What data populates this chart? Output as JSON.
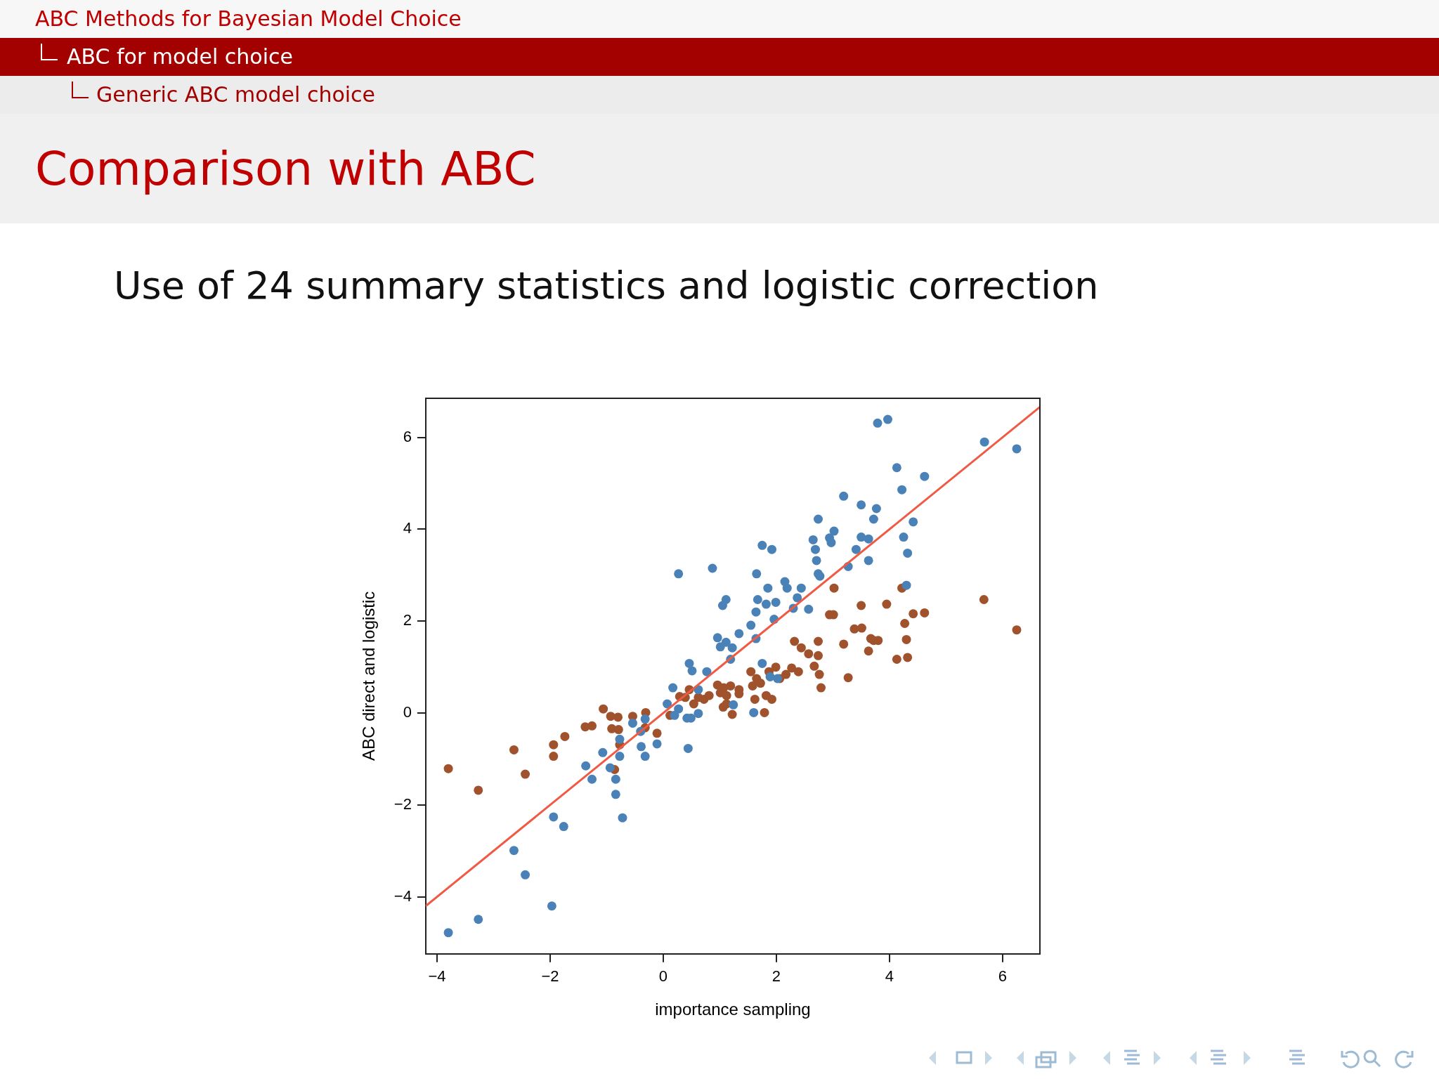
{
  "chart_data": {
    "type": "scatter",
    "title": "Comparison with ABC",
    "subtitle": "Use of 24 summary statistics and logistic correction",
    "annotations": [
      "ABC Methods for Bayesian Model Choice",
      "ABC for model choice",
      "Generic ABC model choice"
    ],
    "xlabel": "importance sampling",
    "ylabel": "ABC direct and logistic",
    "xlim": [
      -4.2,
      6.66
    ],
    "ylim": [
      -5.24,
      6.85
    ],
    "xticks": [
      -4,
      -2,
      0,
      2,
      4,
      6
    ],
    "yticks": [
      -4,
      -2,
      0,
      2,
      4,
      6
    ],
    "grid": false,
    "marker": "circle",
    "series": [
      {
        "color": "#4a82b8",
        "x": [
          -3.8,
          -3.27,
          -1.97,
          -2.44,
          -2.64,
          -1.94,
          -1.76,
          -0.72,
          -1.37,
          -1.26,
          -1.07,
          -0.94,
          -0.84,
          -0.84,
          -0.77,
          -0.77,
          -0.54,
          -0.39,
          -0.32,
          -0.4,
          -0.11,
          -0.32,
          0.07,
          0.2,
          0.17,
          0.44,
          0.27,
          0.42,
          0.49,
          0.62,
          0.46,
          0.51,
          0.62,
          0.77,
          0.27,
          0.87,
          0.96,
          1.01,
          1.11,
          1.05,
          1.11,
          1.19,
          1.24,
          1.34,
          1.22,
          1.6,
          1.55,
          1.64,
          1.64,
          1.67,
          1.65,
          1.75,
          1.92,
          1.85,
          1.82,
          1.99,
          1.96,
          1.75,
          2.15,
          2.19,
          2.37,
          2.44,
          2.3,
          2.57,
          2.65,
          2.69,
          2.74,
          2.71,
          2.74,
          2.77,
          2.94,
          2.97,
          3.02,
          3.19,
          3.27,
          3.41,
          3.5,
          3.5,
          3.63,
          3.63,
          3.72,
          3.77,
          3.79,
          3.97,
          4.13,
          4.22,
          4.25,
          4.32,
          4.3,
          4.42,
          4.62,
          5.68,
          6.25,
          1.89,
          2.02
        ],
        "values": [
          -4.78,
          -4.49,
          -4.2,
          -3.52,
          -2.99,
          -2.26,
          -2.47,
          -2.28,
          -1.15,
          -1.44,
          -0.86,
          -1.19,
          -1.44,
          -1.77,
          -0.94,
          -0.57,
          -0.22,
          -0.73,
          -0.94,
          -0.4,
          -0.67,
          -0.13,
          0.2,
          -0.05,
          0.55,
          -0.77,
          0.09,
          -0.11,
          -0.11,
          -0.01,
          1.08,
          0.92,
          0.51,
          0.9,
          3.03,
          3.15,
          1.64,
          1.44,
          1.54,
          2.34,
          2.47,
          1.17,
          0.18,
          1.73,
          1.42,
          0.01,
          1.91,
          2.2,
          1.62,
          2.47,
          3.03,
          3.65,
          3.56,
          2.72,
          2.37,
          2.41,
          2.04,
          1.08,
          2.86,
          2.72,
          2.51,
          2.72,
          2.28,
          2.26,
          3.77,
          3.56,
          4.22,
          3.32,
          3.03,
          2.98,
          3.81,
          3.71,
          3.96,
          4.72,
          3.19,
          3.56,
          3.83,
          4.53,
          3.79,
          3.32,
          4.22,
          4.45,
          6.31,
          6.39,
          5.34,
          4.86,
          3.83,
          3.48,
          2.78,
          4.16,
          5.15,
          5.9,
          5.75,
          0.79,
          0.75
        ]
      },
      {
        "color": "#a0522d",
        "x": [
          -3.8,
          -3.27,
          -2.64,
          -2.44,
          -1.94,
          -1.94,
          -1.74,
          -1.38,
          -1.26,
          -1.06,
          -0.93,
          -0.8,
          -0.91,
          -0.79,
          -0.86,
          -0.77,
          -0.54,
          -0.31,
          -0.11,
          -0.32,
          0.12,
          0.29,
          0.39,
          0.46,
          0.54,
          0.62,
          0.72,
          0.81,
          0.96,
          1.01,
          1.07,
          1.12,
          1.19,
          1.06,
          1.22,
          1.12,
          1.34,
          1.34,
          1.55,
          1.58,
          1.62,
          1.65,
          1.72,
          1.79,
          1.82,
          1.87,
          1.99,
          1.92,
          2.06,
          2.17,
          2.27,
          2.32,
          2.44,
          2.39,
          2.57,
          2.67,
          2.74,
          2.74,
          2.79,
          2.76,
          2.94,
          3.01,
          3.02,
          3.19,
          3.27,
          3.38,
          3.51,
          3.5,
          3.63,
          3.67,
          3.72,
          3.8,
          3.95,
          4.13,
          4.22,
          4.27,
          4.3,
          4.32,
          4.42,
          4.62,
          5.67,
          6.25
        ],
        "values": [
          -1.21,
          -1.68,
          -0.8,
          -1.33,
          -0.94,
          -0.69,
          -0.51,
          -0.3,
          -0.28,
          0.09,
          -0.07,
          -0.09,
          -0.34,
          -0.36,
          -1.23,
          -0.69,
          -0.07,
          0.01,
          -0.44,
          -0.32,
          -0.05,
          0.36,
          0.34,
          0.51,
          0.2,
          0.34,
          0.3,
          0.38,
          0.61,
          0.44,
          0.55,
          0.38,
          0.59,
          0.13,
          -0.03,
          0.2,
          0.51,
          0.42,
          0.9,
          0.59,
          0.3,
          0.75,
          0.65,
          0.01,
          0.38,
          0.9,
          1.0,
          0.3,
          0.75,
          0.84,
          0.98,
          1.56,
          1.42,
          0.9,
          1.29,
          1.02,
          1.25,
          1.56,
          0.55,
          0.84,
          2.14,
          2.14,
          2.72,
          1.5,
          0.77,
          1.83,
          1.85,
          2.34,
          1.35,
          1.62,
          1.58,
          1.58,
          2.37,
          1.17,
          2.72,
          1.95,
          1.6,
          1.21,
          2.16,
          2.18,
          2.47,
          1.81
        ]
      },
      {
        "type": "line",
        "color": "#ef5a45",
        "line_style": "solid",
        "marker": "none",
        "x": [
          -4.2,
          6.66
        ],
        "values": [
          -4.2,
          6.66
        ]
      }
    ]
  }
}
